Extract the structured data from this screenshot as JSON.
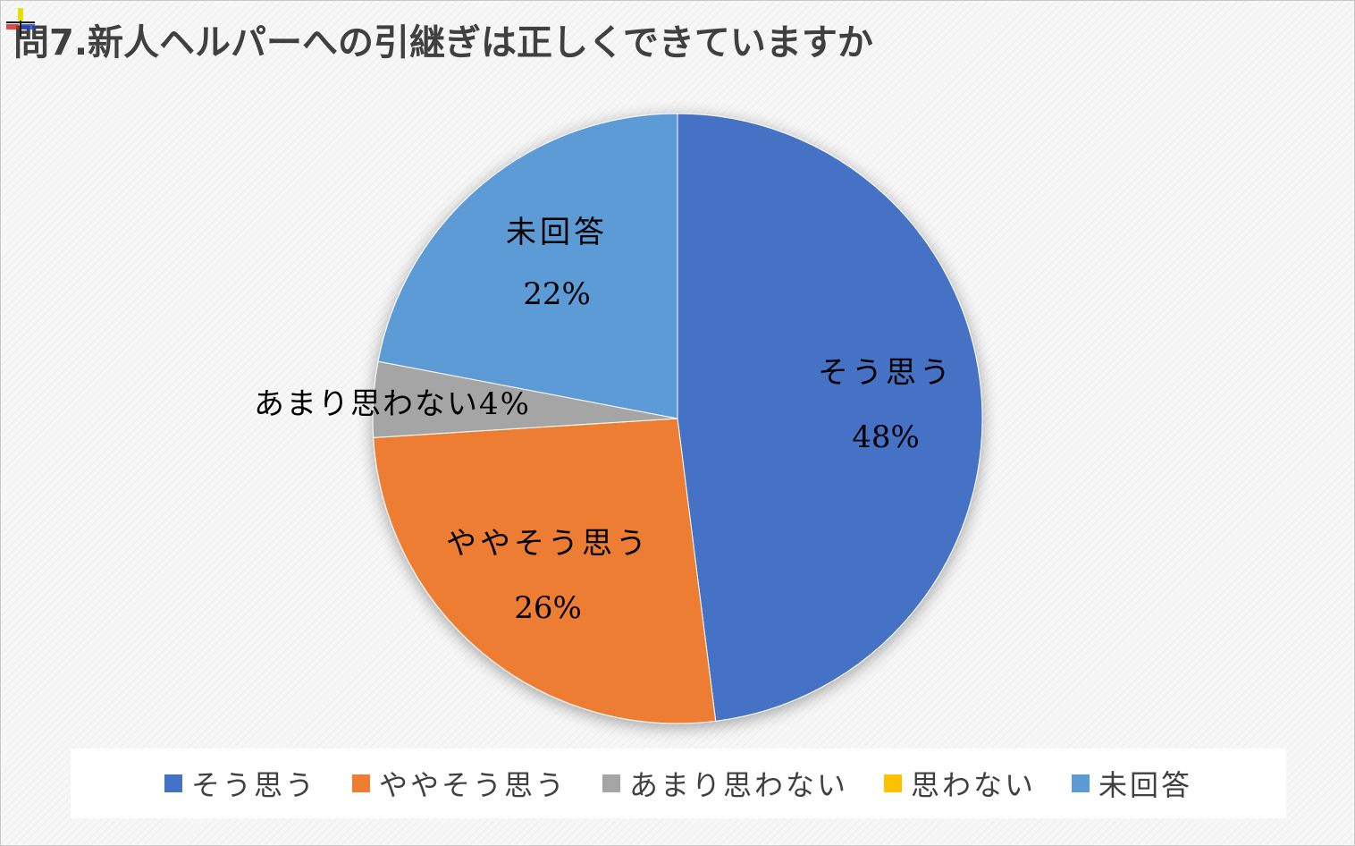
{
  "chart_data": {
    "type": "pie",
    "title": "問7.新人ヘルパーへの引継ぎは正しくできていますか",
    "categories": [
      "そう思う",
      "ややそう思う",
      "あまり思わない",
      "思わない",
      "未回答"
    ],
    "values": [
      48,
      26,
      4,
      0,
      22
    ],
    "value_labels": [
      "48%",
      "26%",
      "4%",
      "",
      "22%"
    ],
    "colors": [
      "#4472C4",
      "#ED7D31",
      "#A5A5A5",
      "#FFC000",
      "#5B9BD5"
    ],
    "legend_position": "bottom",
    "start_angle": "12 o'clock, clockwise"
  }
}
